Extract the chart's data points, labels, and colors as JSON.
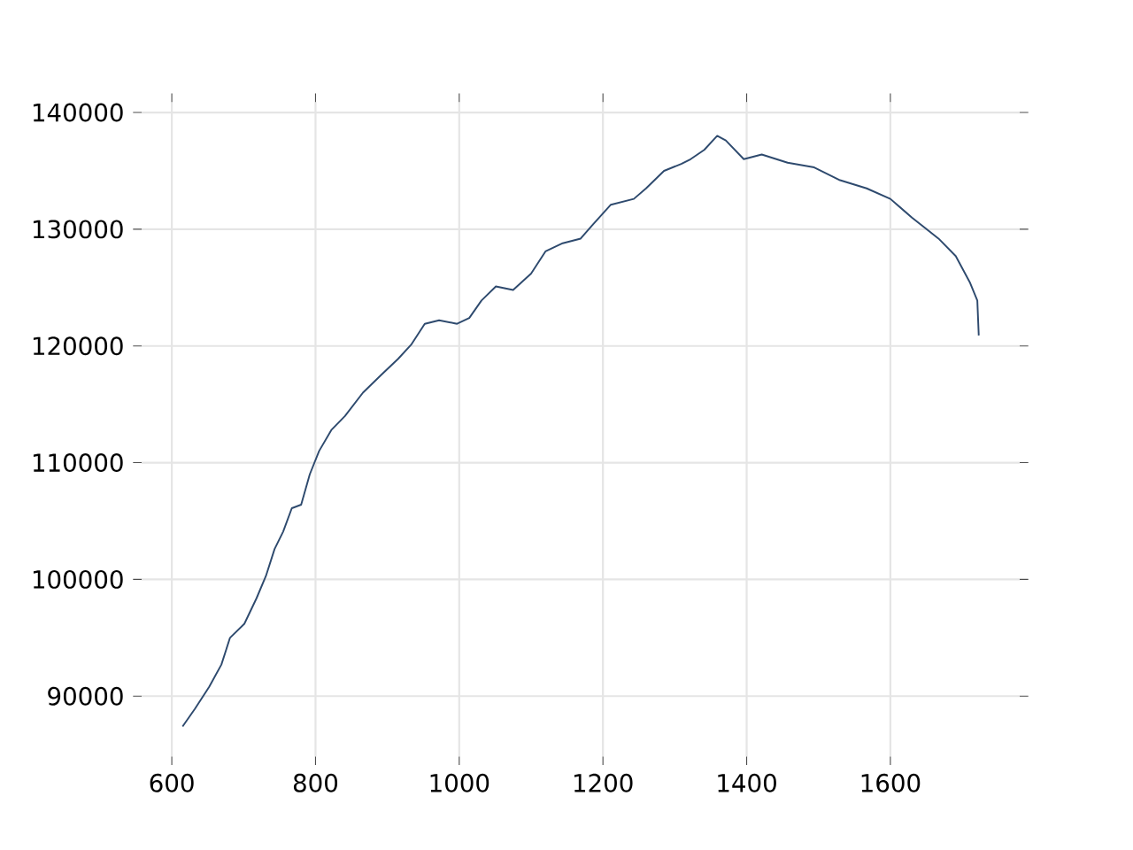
{
  "chart_data": {
    "type": "line",
    "color": "#2e4a6e",
    "grid": true,
    "xlim": [
      558,
      1780
    ],
    "ylim": [
      84830,
      140900
    ],
    "xticks": [
      600,
      800,
      1000,
      1200,
      1400,
      1600
    ],
    "yticks": [
      90000,
      100000,
      110000,
      120000,
      130000,
      140000
    ],
    "x": [
      615,
      632,
      652,
      669,
      681,
      701,
      718,
      731,
      743,
      755,
      767,
      780,
      792,
      805,
      822,
      841,
      866,
      891,
      915,
      933,
      952,
      972,
      997,
      1014,
      1031,
      1051,
      1075,
      1100,
      1120,
      1144,
      1169,
      1186,
      1211,
      1243,
      1260,
      1285,
      1309,
      1322,
      1341,
      1359,
      1371,
      1396,
      1421,
      1457,
      1494,
      1530,
      1567,
      1600,
      1630,
      1667,
      1691,
      1711,
      1721,
      1723
    ],
    "values": [
      87400,
      88900,
      90800,
      92700,
      95000,
      96200,
      98400,
      100300,
      102600,
      104100,
      106100,
      106400,
      109000,
      111000,
      112800,
      114000,
      116000,
      117500,
      118900,
      120100,
      121900,
      122200,
      121900,
      122400,
      123900,
      125100,
      124800,
      126200,
      128100,
      128800,
      129200,
      130400,
      132100,
      132600,
      133500,
      135000,
      135600,
      136000,
      136800,
      138000,
      137600,
      136000,
      136400,
      135700,
      135300,
      134200,
      133500,
      132600,
      131000,
      129200,
      127700,
      125400,
      123900,
      120900
    ]
  }
}
